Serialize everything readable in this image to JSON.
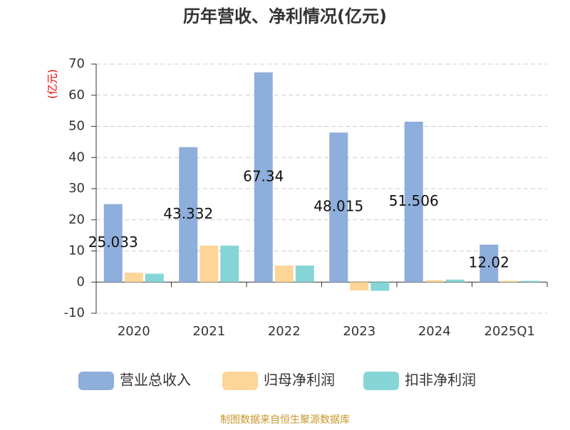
{
  "chart_data": {
    "type": "bar",
    "title": "历年营收、净利情况(亿元)",
    "y_label": "(亿元)",
    "source": "制图数据来自恒生聚源数据库",
    "categories": [
      "2020",
      "2021",
      "2022",
      "2023",
      "2024",
      "2025Q1"
    ],
    "series": [
      {
        "name": "营业总收入",
        "color": "#8eaedb",
        "values": [
          25.033,
          43.332,
          67.34,
          48.015,
          51.506,
          12.02
        ],
        "show_labels": true
      },
      {
        "name": "归母净利润",
        "color": "#fdd597",
        "values": [
          3.0,
          11.7,
          5.3,
          -2.7,
          0.6,
          0.4
        ]
      },
      {
        "name": "扣非净利润",
        "color": "#86d5d6",
        "values": [
          2.7,
          11.7,
          5.3,
          -2.8,
          0.8,
          0.4
        ]
      }
    ],
    "ylim": [
      -10,
      70
    ],
    "yticks": [
      -10,
      0,
      10,
      20,
      30,
      40,
      50,
      60,
      70
    ],
    "grid": true,
    "legend": "bottom"
  }
}
